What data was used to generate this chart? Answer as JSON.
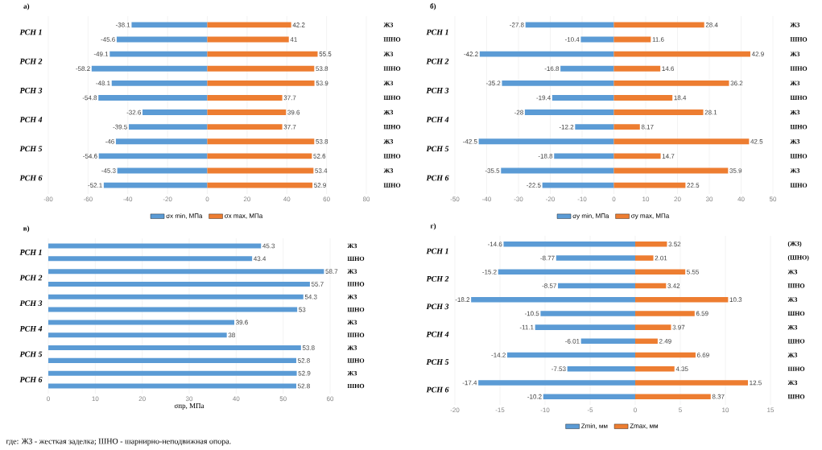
{
  "chart_data": [
    {
      "type": "bar",
      "orientation": "horizontal",
      "title": "а)",
      "categories": [
        "ЖЗ",
        "ШНО",
        "ЖЗ",
        "ШНО",
        "ЖЗ",
        "ШНО",
        "ЖЗ",
        "ШНО",
        "ЖЗ",
        "ШНО",
        "ЖЗ",
        "ШНО"
      ],
      "annotations": [
        "РСН 1",
        "РСН 2",
        "РСН 3",
        "РСН 4",
        "РСН 5",
        "РСН 6"
      ],
      "series": [
        {
          "name": "σx min, МПа",
          "color": "#5b9bd5",
          "values": [
            -38.1,
            -45.6,
            -49.1,
            -58.2,
            -48.1,
            -54.8,
            -32.6,
            -39.5,
            -46,
            -54.6,
            -45.3,
            -52.1
          ]
        },
        {
          "name": "σx max, МПа",
          "color": "#ed7d31",
          "values": [
            42.2,
            41,
            55.5,
            53.8,
            53.9,
            37.7,
            39.6,
            37.7,
            53.8,
            52.6,
            53.4,
            52.9
          ]
        }
      ],
      "xlim": [
        -80,
        80
      ],
      "xticks": [
        -80,
        -60,
        -40,
        -20,
        0,
        20,
        40,
        60,
        80
      ],
      "grid": "x",
      "legend": "bottom",
      "data_labels": true,
      "stacked": true
    },
    {
      "type": "bar",
      "orientation": "horizontal",
      "title": "б)",
      "categories": [
        "ЖЗ",
        "ШНО",
        "ЖЗ",
        "ШНО",
        "ЖЗ",
        "ШНО",
        "ЖЗ",
        "ШНО",
        "ЖЗ",
        "ШНО",
        "ЖЗ",
        "ШНО"
      ],
      "annotations": [
        "РСН 1",
        "РСН 2",
        "РСН 3",
        "РСН 4",
        "РСН 5",
        "РСН 6"
      ],
      "series": [
        {
          "name": "σy min, МПа",
          "color": "#5b9bd5",
          "values": [
            -27.8,
            -10.4,
            -42.2,
            -16.8,
            -35.2,
            -19.4,
            -28,
            -12.2,
            -42.5,
            -18.8,
            -35.5,
            -22.5
          ]
        },
        {
          "name": "σy max, МПа",
          "color": "#ed7d31",
          "values": [
            28.4,
            11.6,
            42.9,
            14.6,
            36.2,
            18.4,
            28.1,
            8.17,
            42.5,
            14.7,
            35.9,
            22.5
          ]
        }
      ],
      "xlim": [
        -50,
        50
      ],
      "xticks": [
        -50,
        -40,
        -30,
        -20,
        -10,
        0,
        10,
        20,
        30,
        40,
        50
      ],
      "grid": "x",
      "legend": "bottom",
      "data_labels": true,
      "stacked": true
    },
    {
      "type": "bar",
      "orientation": "horizontal",
      "title": "в)",
      "xlabel": "σпр, МПа",
      "categories": [
        "ЖЗ",
        "ШНО",
        "ЖЗ",
        "ШНО",
        "ЖЗ",
        "ШНО",
        "ЖЗ",
        "ШНО",
        "ЖЗ",
        "ШНО",
        "ЖЗ",
        "ШНО"
      ],
      "annotations": [
        "РСН 1",
        "РСН 2",
        "РСН 3",
        "РСН 4",
        "РСН 5",
        "РСН 6"
      ],
      "series": [
        {
          "color": "#5b9bd5",
          "values": [
            45.3,
            43.4,
            58.7,
            55.7,
            54.3,
            53,
            39.6,
            38,
            53.8,
            52.8,
            52.9,
            52.8
          ]
        }
      ],
      "xlim": [
        0,
        60
      ],
      "xticks": [
        0,
        10,
        20,
        30,
        40,
        50,
        60
      ],
      "grid": "x",
      "data_labels": true
    },
    {
      "type": "bar",
      "orientation": "horizontal",
      "title": "г)",
      "categories": [
        "(ЖЗ)",
        "(ШНО)",
        "ЖЗ",
        "ШНО",
        "ЖЗ",
        "ШНО",
        "ЖЗ",
        "ШНО",
        "ЖЗ",
        "ШНО",
        "ЖЗ",
        "ШНО"
      ],
      "annotations": [
        "РСН 1",
        "РСН 2",
        "РСН 3",
        "РСН 4",
        "РСН 5",
        "РСН 6"
      ],
      "series": [
        {
          "name": "Zmin, мм",
          "color": "#5b9bd5",
          "values": [
            -14.6,
            -8.77,
            -15.2,
            -8.57,
            -18.2,
            -10.5,
            -11.1,
            -6.01,
            -14.2,
            -7.53,
            -17.4,
            -10.2
          ]
        },
        {
          "name": "Zmax, мм",
          "color": "#ed7d31",
          "values": [
            3.52,
            2.01,
            5.55,
            3.42,
            10.3,
            6.59,
            3.97,
            2.49,
            6.69,
            4.35,
            12.5,
            8.37
          ]
        }
      ],
      "xlim": [
        -20,
        15
      ],
      "xticks": [
        -20,
        -15,
        -10,
        -5,
        0,
        5,
        10,
        15
      ],
      "grid": "x",
      "legend": "bottom",
      "data_labels": true,
      "stacked": true
    },
    {
      "type": "other",
      "annotations": [
        "где: ЖЗ - жесткая заделка; ШНО - шарнирно-неподвижная опора."
      ]
    }
  ]
}
